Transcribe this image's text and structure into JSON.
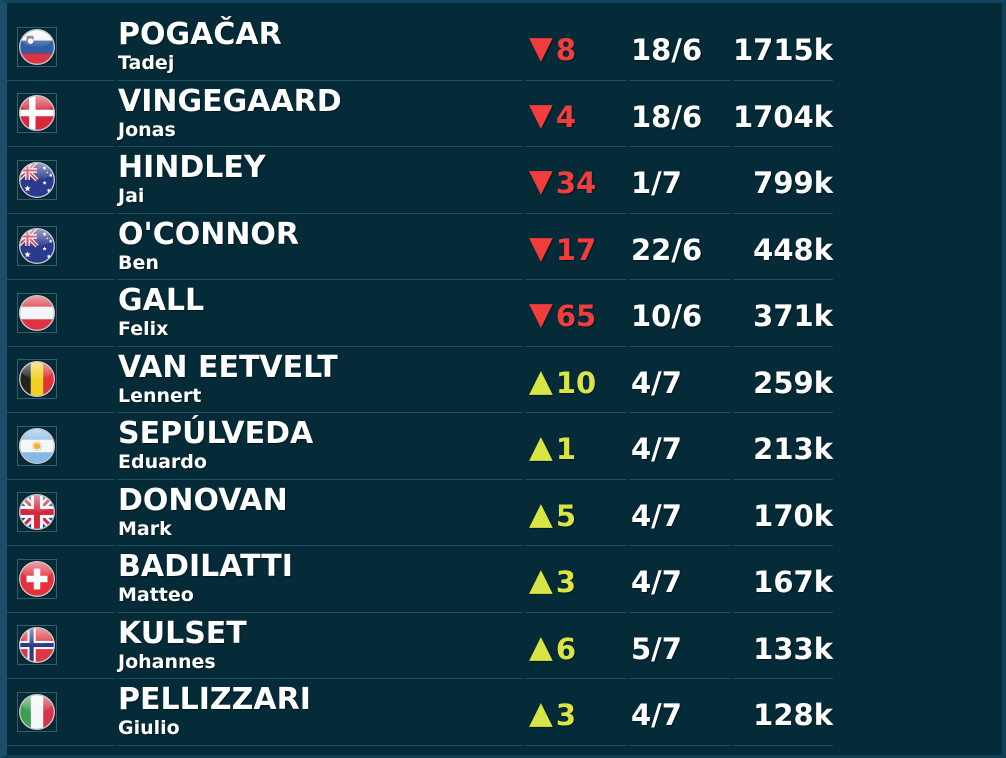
{
  "theme": {
    "background": "#052b38",
    "frame_top": "#12455f",
    "frame_left": "#1d5068",
    "frame_right": "#0f3e52",
    "frame_bottom": "#0f3e52",
    "divider": "#1a5163",
    "flag_box_outline": "rgba(140,190,210,0.35)",
    "text": "#ffffff",
    "down_color": "#f23d3d",
    "up_color": "#d9e544"
  },
  "table": {
    "down_arrow": "▼",
    "up_arrow": "▲",
    "rows": [
      {
        "country": "Slovenia",
        "flag": "si",
        "surname": "POGAČAR",
        "firstname": "Tadej",
        "direction": "down",
        "change": 8,
        "date": "18/6",
        "count": "1715k"
      },
      {
        "country": "Denmark",
        "flag": "dk",
        "surname": "VINGEGAARD",
        "firstname": "Jonas",
        "direction": "down",
        "change": 4,
        "date": "18/6",
        "count": "1704k"
      },
      {
        "country": "Australia",
        "flag": "au",
        "surname": "HINDLEY",
        "firstname": "Jai",
        "direction": "down",
        "change": 34,
        "date": "1/7",
        "count": "799k"
      },
      {
        "country": "Australia",
        "flag": "au",
        "surname": "O'CONNOR",
        "firstname": "Ben",
        "direction": "down",
        "change": 17,
        "date": "22/6",
        "count": "448k"
      },
      {
        "country": "Austria",
        "flag": "at",
        "surname": "GALL",
        "firstname": "Felix",
        "direction": "down",
        "change": 65,
        "date": "10/6",
        "count": "371k"
      },
      {
        "country": "Belgium",
        "flag": "be",
        "surname": "VAN EETVELT",
        "firstname": "Lennert",
        "direction": "up",
        "change": 10,
        "date": "4/7",
        "count": "259k"
      },
      {
        "country": "Argentina",
        "flag": "ar",
        "surname": "SEPÚLVEDA",
        "firstname": "Eduardo",
        "direction": "up",
        "change": 1,
        "date": "4/7",
        "count": "213k"
      },
      {
        "country": "United Kingdom",
        "flag": "gb",
        "surname": "DONOVAN",
        "firstname": "Mark",
        "direction": "up",
        "change": 5,
        "date": "4/7",
        "count": "170k"
      },
      {
        "country": "Switzerland",
        "flag": "ch",
        "surname": "BADILATTI",
        "firstname": "Matteo",
        "direction": "up",
        "change": 3,
        "date": "4/7",
        "count": "167k"
      },
      {
        "country": "Norway",
        "flag": "no",
        "surname": "KULSET",
        "firstname": "Johannes",
        "direction": "up",
        "change": 6,
        "date": "5/7",
        "count": "133k"
      },
      {
        "country": "Italy",
        "flag": "it",
        "surname": "PELLIZZARI",
        "firstname": "Giulio",
        "direction": "up",
        "change": 3,
        "date": "4/7",
        "count": "128k"
      }
    ]
  }
}
